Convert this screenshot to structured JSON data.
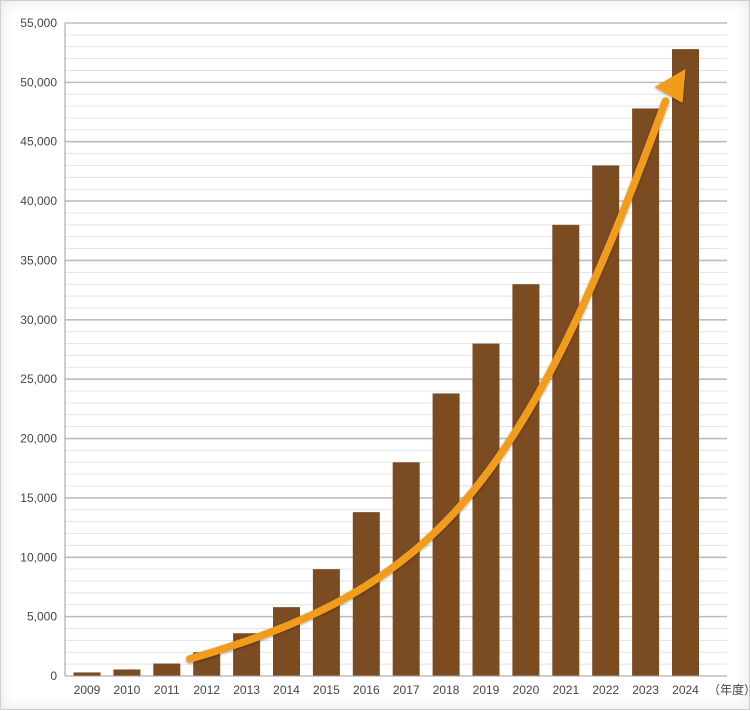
{
  "chart_data": {
    "type": "bar",
    "categories": [
      "2009",
      "2010",
      "2011",
      "2012",
      "2013",
      "2014",
      "2015",
      "2016",
      "2017",
      "2018",
      "2019",
      "2020",
      "2021",
      "2022",
      "2023",
      "2024"
    ],
    "values": [
      300,
      550,
      1050,
      2000,
      3600,
      5800,
      9000,
      13800,
      18000,
      23800,
      28000,
      33000,
      38000,
      43000,
      47800,
      52800
    ],
    "title": "",
    "xlabel": "",
    "x_unit_label": "（年度）",
    "ylabel": "",
    "ylim": [
      0,
      55000
    ],
    "y_ticks": [
      "0",
      "5,000",
      "10,000",
      "15,000",
      "20,000",
      "25,000",
      "30,000",
      "35,000",
      "40,000",
      "45,000",
      "50,000",
      "55,000"
    ],
    "grid": true,
    "colors": {
      "bar": "#7b4b22",
      "trend_arrow": "#f29c1f",
      "major_grid": "#bdbdbd",
      "minor_grid": "#e3e3e3"
    },
    "annotations": [
      {
        "kind": "trend-arrow",
        "from_category": "2012",
        "to_category": "2024"
      }
    ]
  }
}
